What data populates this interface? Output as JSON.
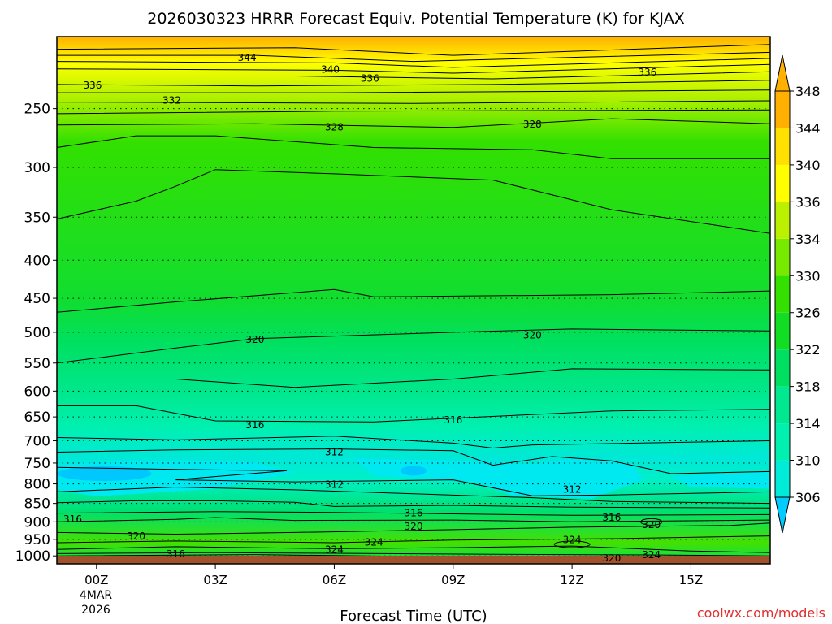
{
  "chart_data": {
    "type": "heatmap",
    "title": "2026030323 HRRR Forecast Equiv. Potential Temperature (K) for KJAX",
    "xlabel": "Forecast Time (UTC)",
    "ylabel": "",
    "credit": "coolwx.com/models",
    "x_ticks": [
      "00Z",
      "03Z",
      "06Z",
      "09Z",
      "12Z",
      "15Z"
    ],
    "x_tick_hours": [
      0,
      3,
      6,
      9,
      12,
      15
    ],
    "x_range_hours": [
      -1,
      17
    ],
    "x_date_label": [
      "4MAR",
      "2026"
    ],
    "y_ticks": [
      250,
      300,
      350,
      400,
      450,
      500,
      550,
      600,
      650,
      700,
      750,
      800,
      850,
      900,
      950,
      1000
    ],
    "y_range_hpa": [
      200,
      1025
    ],
    "y_scale": "log-pressure",
    "colorbar_levels": [
      306,
      310,
      314,
      318,
      322,
      326,
      330,
      334,
      336,
      340,
      344,
      348
    ],
    "colorbar_colors": [
      "#00ccff",
      "#00ecd8",
      "#00f0b0",
      "#00e890",
      "#00e060",
      "#11dd22",
      "#33e000",
      "#77ea00",
      "#bbf000",
      "#ffff00",
      "#ffe000",
      "#ffb000"
    ],
    "ground_color": "#a0522d",
    "grid": true,
    "contour_labels": [
      {
        "text": "344",
        "hour": 3.8,
        "hpa": 213
      },
      {
        "text": "340",
        "hour": 5.9,
        "hpa": 221
      },
      {
        "text": "336",
        "hour": -0.1,
        "hpa": 232
      },
      {
        "text": "336",
        "hour": 6.9,
        "hpa": 227
      },
      {
        "text": "336",
        "hour": 13.9,
        "hpa": 223
      },
      {
        "text": "332",
        "hour": 1.9,
        "hpa": 243
      },
      {
        "text": "328",
        "hour": 6.0,
        "hpa": 264
      },
      {
        "text": "328",
        "hour": 11.0,
        "hpa": 262
      },
      {
        "text": "320",
        "hour": 4.0,
        "hpa": 510
      },
      {
        "text": "320",
        "hour": 11.0,
        "hpa": 503
      },
      {
        "text": "316",
        "hour": 4.0,
        "hpa": 665
      },
      {
        "text": "316",
        "hour": 9.0,
        "hpa": 655
      },
      {
        "text": "312",
        "hour": 6.0,
        "hpa": 723
      },
      {
        "text": "312",
        "hour": 6.0,
        "hpa": 800
      },
      {
        "text": "312",
        "hour": 12.0,
        "hpa": 812
      },
      {
        "text": "316",
        "hour": -0.6,
        "hpa": 890
      },
      {
        "text": "316",
        "hour": 8.0,
        "hpa": 873
      },
      {
        "text": "316",
        "hour": 13.0,
        "hpa": 886
      },
      {
        "text": "320",
        "hour": 1.0,
        "hpa": 938
      },
      {
        "text": "320",
        "hour": 8.0,
        "hpa": 911
      },
      {
        "text": "320",
        "hour": 14.0,
        "hpa": 906
      },
      {
        "text": "324",
        "hour": 6.0,
        "hpa": 978
      },
      {
        "text": "324",
        "hour": 7.0,
        "hpa": 956
      },
      {
        "text": "324",
        "hour": 12.0,
        "hpa": 949
      },
      {
        "text": "324",
        "hour": 14.0,
        "hpa": 994
      },
      {
        "text": "316",
        "hour": 2.0,
        "hpa": 992
      },
      {
        "text": "320",
        "hour": 13.0,
        "hpa": 1004
      }
    ]
  }
}
